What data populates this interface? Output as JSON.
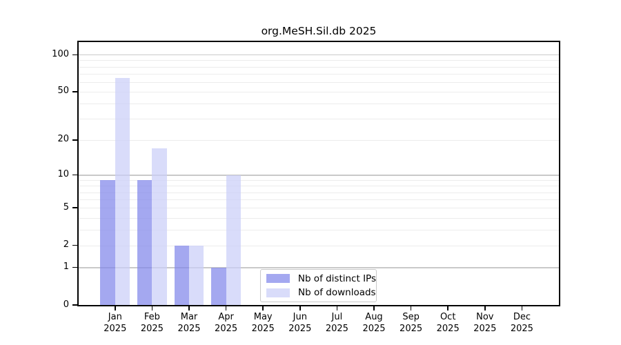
{
  "chart_data": {
    "type": "bar",
    "title": "org.MeSH.Sil.db 2025",
    "categories": [
      "Jan 2025",
      "Feb 2025",
      "Mar 2025",
      "Apr 2025",
      "May 2025",
      "Jun 2025",
      "Jul 2025",
      "Aug 2025",
      "Sep 2025",
      "Oct 2025",
      "Nov 2025",
      "Dec 2025"
    ],
    "series": [
      {
        "name": "Nb of distinct IPs",
        "color": "#8186ea",
        "values": [
          9,
          9,
          2,
          1,
          0,
          0,
          0,
          0,
          0,
          0,
          0,
          0
        ]
      },
      {
        "name": "Nb of downloads",
        "color": "#cbcef8",
        "values": [
          65,
          17,
          2,
          10,
          0,
          0,
          0,
          0,
          0,
          0,
          0,
          0
        ]
      }
    ],
    "yscale": "log1p",
    "yticks": [
      0,
      1,
      2,
      5,
      10,
      20,
      50,
      100
    ],
    "ylim": [
      0,
      128
    ],
    "xlabel": "",
    "ylabel": "",
    "grid": true,
    "legend_position": "lower center"
  },
  "colors": {
    "background": "#ffffff",
    "spine": "#000000",
    "grid_major": "#c9c9c9",
    "grid_minor": "#ececec",
    "tick_text": "#000000"
  }
}
